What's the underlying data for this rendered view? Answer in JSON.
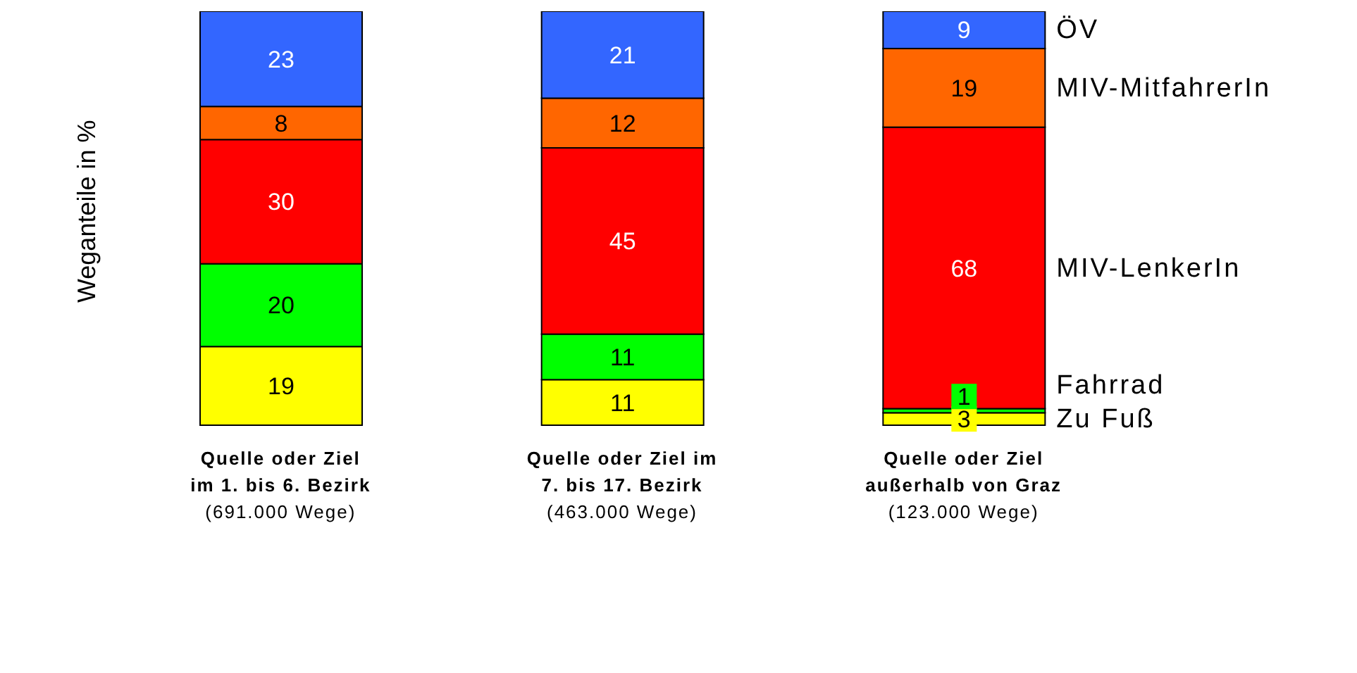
{
  "chart_data": {
    "type": "bar",
    "stacked": true,
    "ylabel": "Weganteile in %",
    "categories": [
      "Quelle oder Ziel\nim 1. bis 6. Bezirk\n(691.000 Wege)",
      "Quelle oder Ziel im\n7. bis 17. Bezirk\n(463.000 Wege)",
      "Quelle oder Ziel\naußerhalb von Graz\n(123.000 Wege)"
    ],
    "series": [
      {
        "name": "Zu Fuß",
        "color": "#ffff00",
        "values": [
          19,
          11,
          3
        ]
      },
      {
        "name": "Fahrrad",
        "color": "#00ff00",
        "values": [
          20,
          11,
          1
        ]
      },
      {
        "name": "MIV-LenkerIn",
        "color": "#ff0000",
        "values": [
          30,
          45,
          68
        ]
      },
      {
        "name": "MIV-MitfahrerIn",
        "color": "#ff6600",
        "values": [
          8,
          12,
          19
        ]
      },
      {
        "name": "ÖV",
        "color": "#3366ff",
        "values": [
          23,
          21,
          9
        ]
      }
    ],
    "data_labels": true,
    "legend": "right",
    "grid": false
  }
}
